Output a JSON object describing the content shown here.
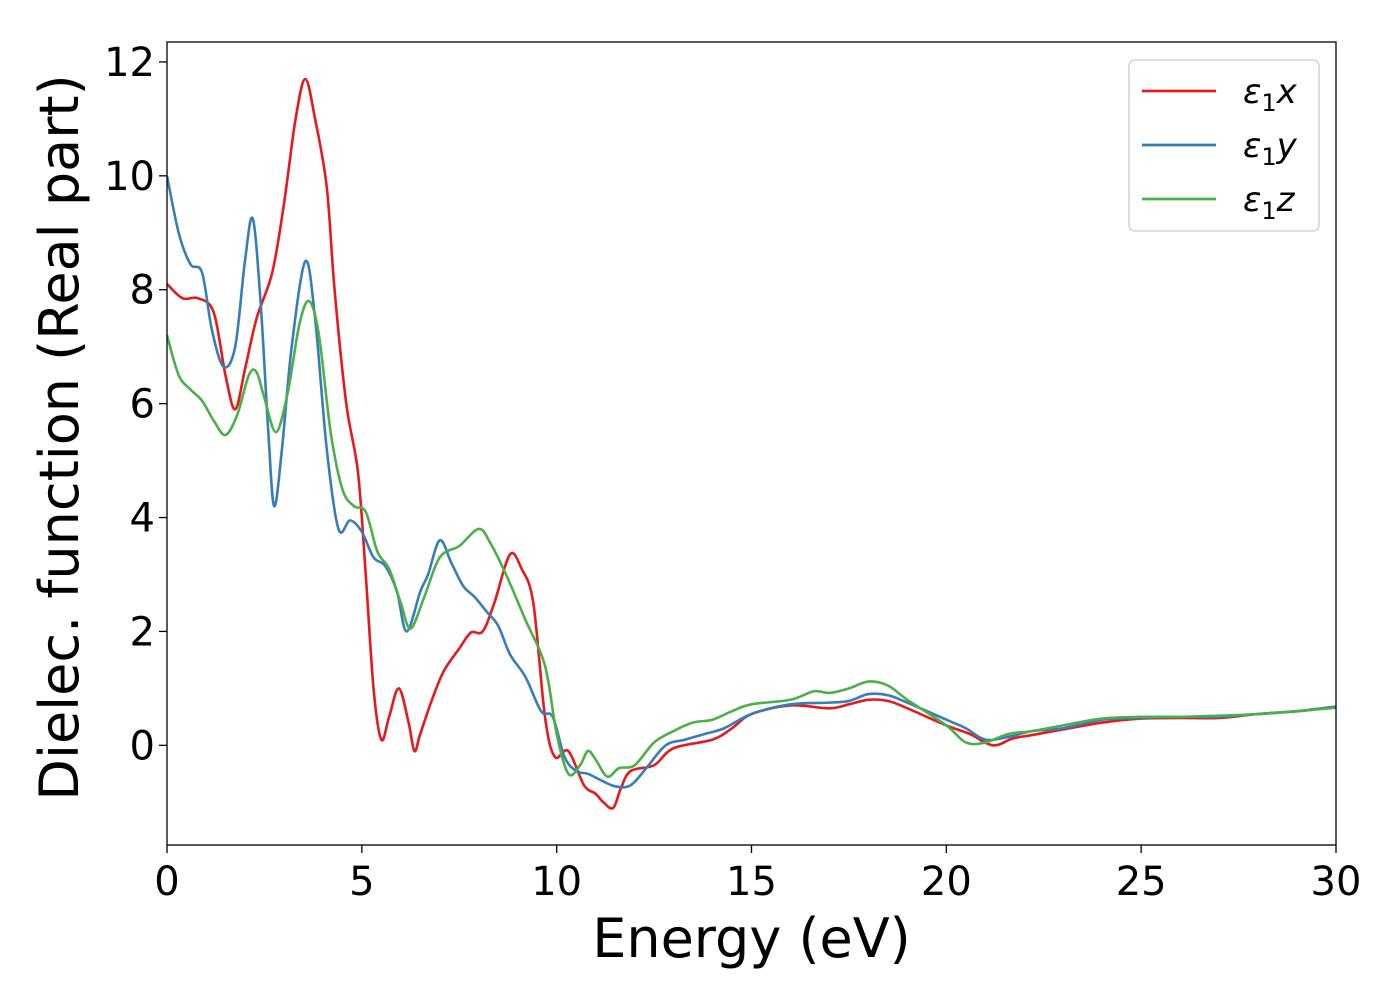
{
  "chart_data": {
    "type": "line",
    "title": "",
    "xlabel": "Energy (eV)",
    "ylabel": "Dielec. function (Real part)",
    "xlim": [
      0,
      30
    ],
    "ylim": [
      -1.75,
      12.35
    ],
    "xticks": [
      "0",
      "5",
      "10",
      "15",
      "20",
      "25",
      "30"
    ],
    "yticks": [
      "0",
      "2",
      "4",
      "6",
      "8",
      "10",
      "12"
    ],
    "grid": false,
    "legend_position": "top-right",
    "series": [
      {
        "name": "ε₁x",
        "legend_base": "ε",
        "legend_sub": "1",
        "legend_var": "x",
        "color": "#e41a1c",
        "points": [
          [
            0,
            8.1
          ],
          [
            0.4,
            7.85
          ],
          [
            0.8,
            7.85
          ],
          [
            1.2,
            7.6
          ],
          [
            1.5,
            6.5
          ],
          [
            1.75,
            5.9
          ],
          [
            2.0,
            6.6
          ],
          [
            2.3,
            7.5
          ],
          [
            2.7,
            8.3
          ],
          [
            3.0,
            9.5
          ],
          [
            3.3,
            11.0
          ],
          [
            3.55,
            11.7
          ],
          [
            3.8,
            11.0
          ],
          [
            4.1,
            9.8
          ],
          [
            4.3,
            8.0
          ],
          [
            4.6,
            6.0
          ],
          [
            4.9,
            4.8
          ],
          [
            5.1,
            3.0
          ],
          [
            5.3,
            1.0
          ],
          [
            5.5,
            0.1
          ],
          [
            5.7,
            0.5
          ],
          [
            5.95,
            1.0
          ],
          [
            6.2,
            0.4
          ],
          [
            6.35,
            -0.1
          ],
          [
            6.5,
            0.2
          ],
          [
            6.8,
            0.8
          ],
          [
            7.1,
            1.3
          ],
          [
            7.5,
            1.7
          ],
          [
            7.8,
            1.98
          ],
          [
            8.1,
            2.0
          ],
          [
            8.4,
            2.5
          ],
          [
            8.8,
            3.35
          ],
          [
            9.1,
            3.1
          ],
          [
            9.4,
            2.5
          ],
          [
            9.7,
            0.5
          ],
          [
            9.95,
            -0.2
          ],
          [
            10.3,
            -0.1
          ],
          [
            10.7,
            -0.7
          ],
          [
            11.0,
            -0.85
          ],
          [
            11.2,
            -1.0
          ],
          [
            11.45,
            -1.1
          ],
          [
            11.65,
            -0.75
          ],
          [
            11.9,
            -0.45
          ],
          [
            12.5,
            -0.35
          ],
          [
            13.0,
            -0.05
          ],
          [
            14.0,
            0.1
          ],
          [
            14.5,
            0.3
          ],
          [
            15.0,
            0.55
          ],
          [
            16.0,
            0.7
          ],
          [
            17.0,
            0.65
          ],
          [
            17.5,
            0.72
          ],
          [
            18.0,
            0.8
          ],
          [
            18.5,
            0.78
          ],
          [
            19.0,
            0.65
          ],
          [
            20.0,
            0.35
          ],
          [
            20.6,
            0.2
          ],
          [
            21.2,
            0.0
          ],
          [
            21.7,
            0.12
          ],
          [
            22.2,
            0.18
          ],
          [
            23.0,
            0.28
          ],
          [
            24.0,
            0.4
          ],
          [
            25.0,
            0.47
          ],
          [
            26.0,
            0.48
          ],
          [
            27.0,
            0.48
          ],
          [
            28.0,
            0.55
          ],
          [
            29.0,
            0.6
          ],
          [
            30.0,
            0.68
          ]
        ]
      },
      {
        "name": "ε₁y",
        "legend_base": "ε",
        "legend_sub": "1",
        "legend_var": "y",
        "color": "#377eb8",
        "points": [
          [
            0,
            10.0
          ],
          [
            0.3,
            9.0
          ],
          [
            0.6,
            8.45
          ],
          [
            0.9,
            8.3
          ],
          [
            1.15,
            7.3
          ],
          [
            1.45,
            6.65
          ],
          [
            1.75,
            7.0
          ],
          [
            2.0,
            8.5
          ],
          [
            2.2,
            9.25
          ],
          [
            2.4,
            7.8
          ],
          [
            2.6,
            5.5
          ],
          [
            2.75,
            4.2
          ],
          [
            2.95,
            5.2
          ],
          [
            3.2,
            7.0
          ],
          [
            3.55,
            8.5
          ],
          [
            3.8,
            7.5
          ],
          [
            4.1,
            5.2
          ],
          [
            4.4,
            3.8
          ],
          [
            4.7,
            3.95
          ],
          [
            5.0,
            3.75
          ],
          [
            5.3,
            3.3
          ],
          [
            5.6,
            3.15
          ],
          [
            5.9,
            2.7
          ],
          [
            6.15,
            2.0
          ],
          [
            6.5,
            2.7
          ],
          [
            6.7,
            3.0
          ],
          [
            7.0,
            3.6
          ],
          [
            7.3,
            3.2
          ],
          [
            7.6,
            2.8
          ],
          [
            7.9,
            2.6
          ],
          [
            8.2,
            2.35
          ],
          [
            8.5,
            2.1
          ],
          [
            8.8,
            1.6
          ],
          [
            9.2,
            1.2
          ],
          [
            9.6,
            0.6
          ],
          [
            9.9,
            0.5
          ],
          [
            10.2,
            -0.2
          ],
          [
            10.5,
            -0.45
          ],
          [
            10.8,
            -0.5
          ],
          [
            11.1,
            -0.6
          ],
          [
            11.5,
            -0.72
          ],
          [
            11.9,
            -0.7
          ],
          [
            12.3,
            -0.4
          ],
          [
            12.8,
            0.0
          ],
          [
            13.3,
            0.1
          ],
          [
            13.8,
            0.2
          ],
          [
            14.3,
            0.3
          ],
          [
            15.0,
            0.55
          ],
          [
            16.0,
            0.72
          ],
          [
            17.0,
            0.75
          ],
          [
            17.5,
            0.78
          ],
          [
            18.0,
            0.9
          ],
          [
            18.5,
            0.88
          ],
          [
            19.0,
            0.75
          ],
          [
            20.0,
            0.45
          ],
          [
            20.5,
            0.3
          ],
          [
            21.0,
            0.1
          ],
          [
            21.6,
            0.15
          ],
          [
            22.2,
            0.25
          ],
          [
            23.0,
            0.3
          ],
          [
            24.0,
            0.45
          ],
          [
            25.0,
            0.48
          ],
          [
            26.0,
            0.5
          ],
          [
            27.0,
            0.5
          ],
          [
            28.0,
            0.55
          ],
          [
            29.0,
            0.6
          ],
          [
            30.0,
            0.68
          ]
        ]
      },
      {
        "name": "ε₁z",
        "legend_base": "ε",
        "legend_sub": "1",
        "legend_var": "z",
        "color": "#4daf4a",
        "points": [
          [
            0,
            7.2
          ],
          [
            0.3,
            6.5
          ],
          [
            0.6,
            6.25
          ],
          [
            0.9,
            6.05
          ],
          [
            1.2,
            5.7
          ],
          [
            1.5,
            5.45
          ],
          [
            1.8,
            5.8
          ],
          [
            2.1,
            6.5
          ],
          [
            2.3,
            6.55
          ],
          [
            2.5,
            6.1
          ],
          [
            2.8,
            5.5
          ],
          [
            3.1,
            6.2
          ],
          [
            3.4,
            7.4
          ],
          [
            3.65,
            7.8
          ],
          [
            3.9,
            7.2
          ],
          [
            4.2,
            5.5
          ],
          [
            4.5,
            4.5
          ],
          [
            4.8,
            4.2
          ],
          [
            5.1,
            4.1
          ],
          [
            5.4,
            3.4
          ],
          [
            5.7,
            3.1
          ],
          [
            6.0,
            2.5
          ],
          [
            6.25,
            2.05
          ],
          [
            6.6,
            2.6
          ],
          [
            7.0,
            3.3
          ],
          [
            7.5,
            3.5
          ],
          [
            8.0,
            3.8
          ],
          [
            8.3,
            3.55
          ],
          [
            8.7,
            3.0
          ],
          [
            9.2,
            2.2
          ],
          [
            9.7,
            1.4
          ],
          [
            10.0,
            0.2
          ],
          [
            10.3,
            -0.5
          ],
          [
            10.6,
            -0.35
          ],
          [
            10.8,
            -0.1
          ],
          [
            11.0,
            -0.25
          ],
          [
            11.3,
            -0.55
          ],
          [
            11.6,
            -0.4
          ],
          [
            12.0,
            -0.35
          ],
          [
            12.5,
            0.05
          ],
          [
            13.0,
            0.25
          ],
          [
            13.5,
            0.4
          ],
          [
            14.0,
            0.45
          ],
          [
            14.5,
            0.6
          ],
          [
            15.0,
            0.72
          ],
          [
            16.0,
            0.8
          ],
          [
            16.6,
            0.95
          ],
          [
            17.0,
            0.92
          ],
          [
            17.5,
            1.0
          ],
          [
            18.0,
            1.12
          ],
          [
            18.5,
            1.05
          ],
          [
            19.0,
            0.8
          ],
          [
            20.0,
            0.35
          ],
          [
            20.5,
            0.05
          ],
          [
            21.0,
            0.05
          ],
          [
            21.6,
            0.2
          ],
          [
            22.2,
            0.25
          ],
          [
            23.0,
            0.35
          ],
          [
            24.0,
            0.47
          ],
          [
            25.0,
            0.5
          ],
          [
            26.0,
            0.5
          ],
          [
            27.0,
            0.52
          ],
          [
            28.0,
            0.55
          ],
          [
            29.0,
            0.6
          ],
          [
            30.0,
            0.66
          ]
        ]
      }
    ]
  }
}
